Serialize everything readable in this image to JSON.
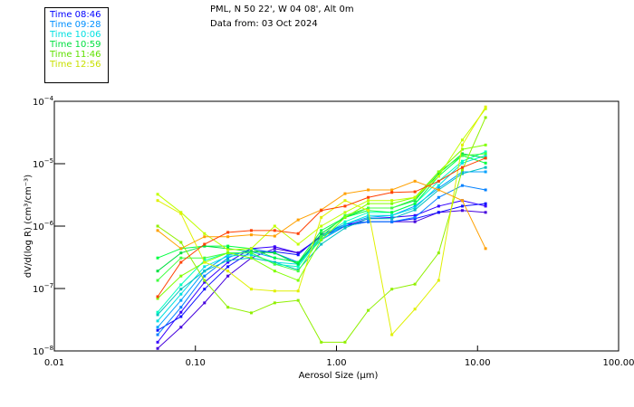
{
  "header": {
    "location": "PML, N 50 22', W 04 08', Alt 0m",
    "date_line": "Data from: 03 Oct 2024"
  },
  "legend": [
    {
      "label": "Time 08:46",
      "color": "#0000ff"
    },
    {
      "label": "Time 09:28",
      "color": "#0090ff"
    },
    {
      "label": "Time 10:06",
      "color": "#00e0e0"
    },
    {
      "label": "Time 10:59",
      "color": "#00e040"
    },
    {
      "label": "Time 11:46",
      "color": "#60e000"
    },
    {
      "label": "Time 12:56",
      "color": "#c8e000"
    }
  ],
  "chart_data": {
    "type": "line",
    "xscale": "log",
    "yscale": "log",
    "xlabel": "Aerosol Size (µm)",
    "ylabel": "dV/d(log R) (cm³/cm⁻³)",
    "xlim": [
      0.01,
      100
    ],
    "ylim_log10": [
      -8,
      -4
    ],
    "x_tick_labels": [
      "0.01",
      "0.10",
      "1.00",
      "10.00",
      "100.00"
    ],
    "x_tick_values": [
      0.01,
      0.1,
      1,
      10,
      100
    ],
    "y_tick_exponents": [
      "-4",
      "-5",
      "-6",
      "-7",
      "-8"
    ],
    "y_tick_values_log10": [
      -4,
      -5,
      -6,
      -7,
      -8
    ],
    "legend_position": "top-left",
    "x": [
      0.054,
      0.079,
      0.116,
      0.17,
      0.249,
      0.365,
      0.535,
      0.78,
      1.15,
      1.68,
      2.47,
      3.6,
      5.3,
      7.8,
      11.4
    ],
    "series": [
      {
        "name": "Time 08:46",
        "color": "#3300ff",
        "values_log10": [
          -7.86,
          -7.38,
          -6.9,
          -6.58,
          -6.36,
          -6.33,
          -6.43,
          -6.17,
          -6.0,
          -5.88,
          -5.86,
          -5.83,
          -5.68,
          -5.59,
          -5.68
        ]
      },
      {
        "name": "Time 08:46",
        "color": "#4400dd",
        "values_log10": [
          -7.96,
          -7.62,
          -7.23,
          -6.8,
          -6.51,
          -6.36,
          -6.43,
          -6.17,
          -6.0,
          -5.93,
          -5.93,
          -5.93,
          -5.78,
          -5.75,
          -5.78
        ]
      },
      {
        "name": "Time 08:46",
        "color": "#1010ff",
        "values_log10": [
          -7.67,
          -7.45,
          -7.01,
          -6.65,
          -6.41,
          -6.41,
          -6.46,
          -6.14,
          -5.97,
          -5.93,
          -5.93,
          -5.88,
          -5.78,
          -5.68,
          -5.64
        ]
      },
      {
        "name": "Time 09:28",
        "color": "#0080ff",
        "values_log10": [
          -7.74,
          -7.3,
          -6.8,
          -6.51,
          -6.36,
          -6.43,
          -6.58,
          -6.22,
          -6.0,
          -5.93,
          -5.93,
          -5.86,
          -5.54,
          -5.35,
          -5.42
        ]
      },
      {
        "name": "Time 09:28",
        "color": "#00a0ff",
        "values_log10": [
          -7.62,
          -7.19,
          -6.72,
          -6.46,
          -6.41,
          -6.51,
          -6.58,
          -6.17,
          -5.97,
          -5.86,
          -5.83,
          -5.68,
          -5.39,
          -5.13,
          -5.13
        ]
      },
      {
        "name": "Time 10:06",
        "color": "#00e0e0",
        "values_log10": [
          -7.52,
          -7.09,
          -6.65,
          -6.48,
          -6.46,
          -6.58,
          -6.61,
          -6.22,
          -5.97,
          -5.83,
          -5.83,
          -5.71,
          -5.35,
          -4.99,
          -4.87
        ]
      },
      {
        "name": "Time 10:06",
        "color": "#00c0c0",
        "values_log10": [
          -7.42,
          -7.01,
          -6.72,
          -6.55,
          -6.51,
          -6.58,
          -6.7,
          -6.29,
          -6.03,
          -5.88,
          -5.88,
          -5.74,
          -5.42,
          -5.16,
          -5.06
        ]
      },
      {
        "name": "Time 10:06",
        "color": "#00ffc0",
        "values_log10": [
          -7.38,
          -6.94,
          -6.55,
          -6.43,
          -6.43,
          -6.61,
          -6.65,
          -6.17,
          -5.93,
          -5.78,
          -5.78,
          -5.64,
          -5.28,
          -4.96,
          -4.81
        ]
      },
      {
        "name": "Time 10:59",
        "color": "#00ff40",
        "values_log10": [
          -6.51,
          -6.36,
          -6.32,
          -6.32,
          -6.36,
          -6.51,
          -6.58,
          -6.07,
          -5.86,
          -5.75,
          -5.78,
          -5.64,
          -5.2,
          -4.87,
          -4.99
        ]
      },
      {
        "name": "Time 10:59",
        "color": "#00e040",
        "values_log10": [
          -6.72,
          -6.43,
          -6.32,
          -6.36,
          -6.41,
          -6.43,
          -6.61,
          -6.12,
          -5.86,
          -5.71,
          -5.71,
          -5.59,
          -5.16,
          -4.84,
          -4.91
        ]
      },
      {
        "name": "Time 10:59",
        "color": "#40ff40",
        "values_log10": [
          -6.87,
          -6.51,
          -6.51,
          -6.43,
          -6.43,
          -6.61,
          -6.72,
          -6.17,
          -5.83,
          -5.71,
          -5.71,
          -5.57,
          -5.13,
          -4.87,
          -4.84
        ]
      },
      {
        "name": "Time 11:46",
        "color": "#80ff00",
        "values_log10": [
          -7.16,
          -6.8,
          -6.58,
          -6.43,
          -6.51,
          -6.72,
          -6.87,
          -6.22,
          -5.86,
          -5.64,
          -5.64,
          -5.54,
          -5.13,
          -4.77,
          -4.7
        ]
      },
      {
        "name": "Time 11:46",
        "color": "#90f000",
        "values_log10": [
          -6.0,
          -6.26,
          -6.87,
          -7.3,
          -7.39,
          -7.23,
          -7.19,
          -7.86,
          -7.86,
          -7.35,
          -7.01,
          -6.93,
          -6.43,
          -5.1,
          -4.26
        ]
      },
      {
        "name": "Time 12:56",
        "color": "#c0ff00",
        "values_log10": [
          -5.49,
          -5.78,
          -6.12,
          -6.38,
          -6.36,
          -6.0,
          -6.29,
          -6.0,
          -5.78,
          -5.59,
          -5.59,
          -5.54,
          -5.2,
          -4.62,
          -4.12
        ]
      },
      {
        "name": "Time 12:56",
        "color": "#e0f000",
        "values_log10": [
          -5.59,
          -5.8,
          -6.58,
          -6.72,
          -7.01,
          -7.04,
          -7.04,
          -5.86,
          -5.59,
          -5.75,
          -7.74,
          -7.33,
          -6.87,
          -4.7,
          -4.09
        ]
      },
      {
        "name": "Time 12:56",
        "color": "#ffa000",
        "values_log10": [
          -6.07,
          -6.36,
          -6.17,
          -6.17,
          -6.14,
          -6.16,
          -5.9,
          -5.74,
          -5.48,
          -5.42,
          -5.42,
          -5.28,
          -5.42,
          -5.59,
          -6.36
        ]
      },
      {
        "name": "Time 12:56",
        "color": "#ff4000",
        "values_log10": [
          -7.13,
          -6.58,
          -6.29,
          -6.1,
          -6.07,
          -6.07,
          -6.12,
          -5.75,
          -5.68,
          -5.54,
          -5.46,
          -5.45,
          -5.28,
          -5.06,
          -4.91
        ]
      }
    ]
  }
}
